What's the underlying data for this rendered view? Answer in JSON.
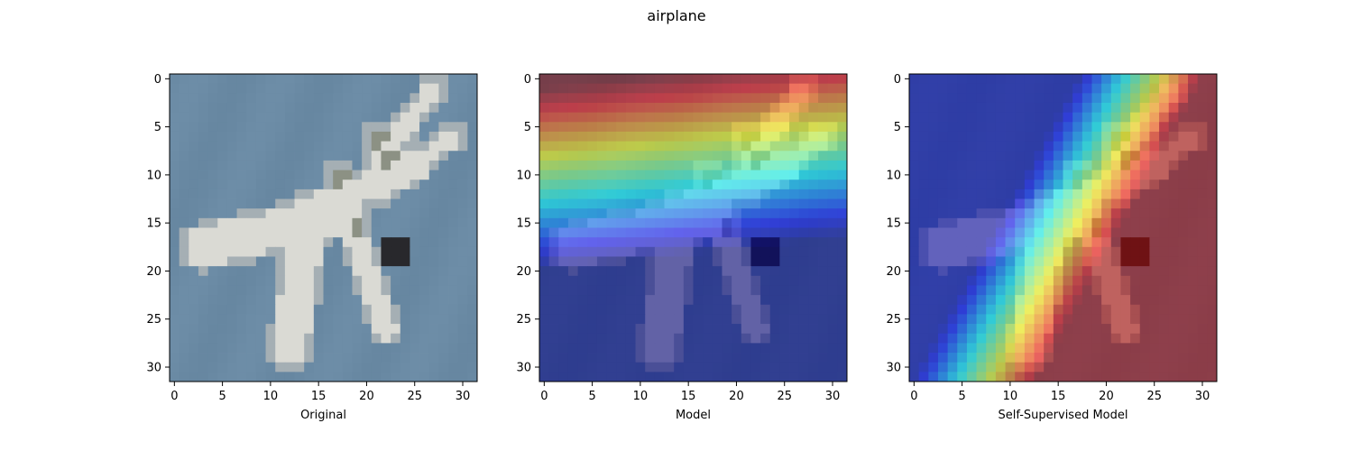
{
  "figure": {
    "suptitle": "airplane"
  },
  "chart_data": [
    {
      "type": "heatmap",
      "title": "",
      "xlabel": "Original",
      "ylabel": "",
      "xlim": [
        -0.5,
        31.5
      ],
      "ylim": [
        31.5,
        -0.5
      ],
      "x_ticks": [
        0,
        5,
        10,
        15,
        20,
        25,
        30
      ],
      "y_ticks": [
        0,
        5,
        10,
        15,
        20,
        25,
        30
      ],
      "grid": false,
      "overlay": "none",
      "image_size": [
        32,
        32
      ],
      "colors": {
        "sky": "#6a8aa4",
        "plane_light": "#d9d9d5",
        "plane_dark": "#8c9184",
        "shadow": "#2a2a2c"
      }
    },
    {
      "type": "heatmap",
      "title": "",
      "xlabel": "Model",
      "ylabel": "",
      "xlim": [
        -0.5,
        31.5
      ],
      "ylim": [
        31.5,
        -0.5
      ],
      "x_ticks": [
        0,
        5,
        10,
        15,
        20,
        25,
        30
      ],
      "y_ticks": [
        0,
        5,
        10,
        15,
        20,
        25,
        30
      ],
      "grid": false,
      "overlay": "jet saliency map",
      "peak_region": "upper-right",
      "colormap": "jet"
    },
    {
      "type": "heatmap",
      "title": "",
      "xlabel": "Self-Supervised Model",
      "ylabel": "",
      "xlim": [
        -0.5,
        31.5
      ],
      "ylim": [
        31.5,
        -0.5
      ],
      "x_ticks": [
        0,
        5,
        10,
        15,
        20,
        25,
        30
      ],
      "y_ticks": [
        0,
        5,
        10,
        15,
        20,
        25,
        30
      ],
      "grid": false,
      "overlay": "jet saliency map",
      "peak_region": "lower-right",
      "colormap": "jet"
    }
  ]
}
